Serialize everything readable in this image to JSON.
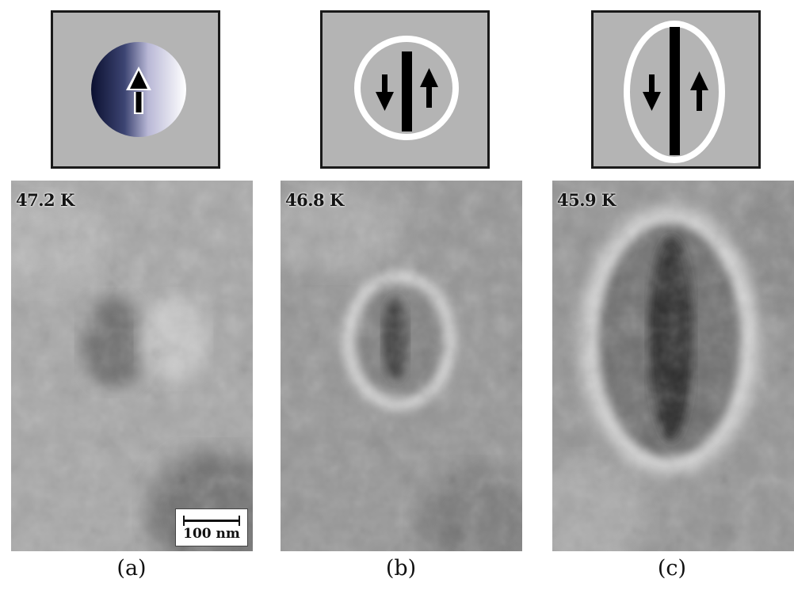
{
  "panels": [
    {
      "id": "a",
      "caption": "(a)",
      "temperature": "47.2 K",
      "schematic": "single-domain",
      "scale_bar": "100 nm"
    },
    {
      "id": "b",
      "caption": "(b)",
      "temperature": "46.8 K",
      "schematic": "two-domain-circle"
    },
    {
      "id": "c",
      "caption": "(c)",
      "temperature": "45.9 K",
      "schematic": "two-domain-ellipse"
    }
  ],
  "icons": {
    "arrow_up": "arrow-up-icon",
    "arrow_down": "arrow-down-icon"
  },
  "colors": {
    "schematic_background": "#b4b4b4",
    "domain_wall": "#000000",
    "domain_boundary": "#ffffff",
    "gradient_dark": "#0b1030",
    "gradient_light": "#ffffff"
  }
}
